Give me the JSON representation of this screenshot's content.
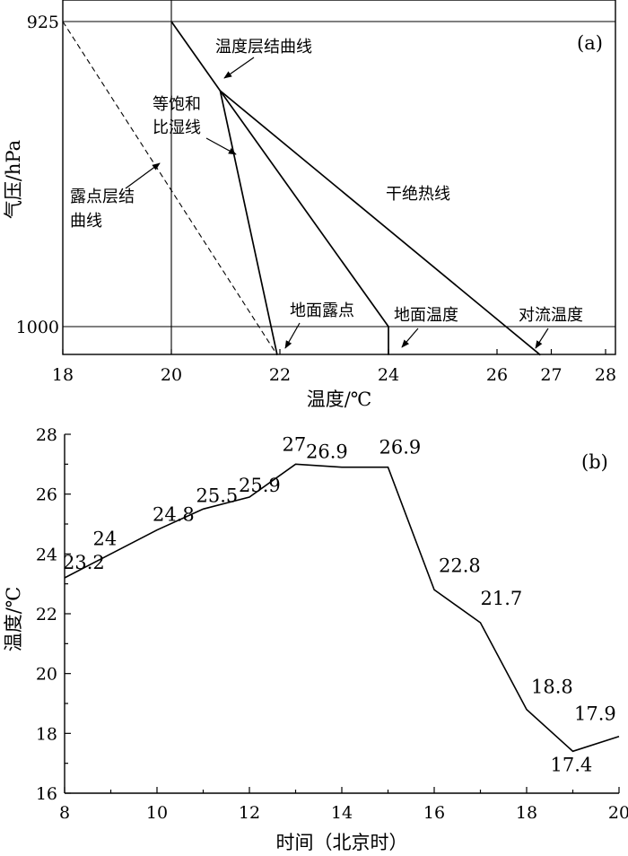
{
  "chart_data": [
    {
      "type": "line",
      "panel_label": "(a)",
      "xlabel": "温度/℃",
      "ylabel": "气压/hPa",
      "xlim": [
        18,
        28.3
      ],
      "x_ticks": [
        18,
        20,
        22,
        24,
        26,
        27,
        28
      ],
      "y_ticks": [
        {
          "value": 925,
          "label": "925"
        },
        {
          "value": 1000,
          "label": "1000"
        }
      ],
      "grid_lines": {
        "x": [
          20
        ],
        "y": [
          925,
          1000
        ]
      },
      "series": [
        {
          "label": "温度层结曲线",
          "style": "solid",
          "points": [
            [
              20,
              925
            ],
            [
              20.9,
              942
            ]
          ]
        },
        {
          "label": "等饱和比湿线",
          "style": "solid",
          "points": [
            [
              20.9,
              942
            ],
            [
              21.95,
              1007
            ]
          ]
        },
        {
          "label": "露点层结曲线",
          "style": "dashed",
          "points": [
            [
              18,
              925
            ],
            [
              21.95,
              1007
            ]
          ]
        },
        {
          "label": "干绝热线",
          "style": "solid",
          "points": [
            [
              20.9,
              942
            ],
            [
              26.8,
              1007
            ]
          ]
        },
        {
          "style": "solid",
          "points": [
            [
              20.9,
              942
            ],
            [
              24,
              1000
            ]
          ]
        },
        {
          "style": "solid",
          "points": [
            [
              24,
              1000
            ],
            [
              24,
              1007
            ]
          ]
        }
      ],
      "annotations": [
        {
          "text": "温度层结曲线"
        },
        {
          "text": "等饱和"
        },
        {
          "text": "比湿线"
        },
        {
          "text": "露点层结"
        },
        {
          "text": "曲线"
        },
        {
          "text": "干绝热线"
        },
        {
          "text": "地面露点"
        },
        {
          "text": "地面温度"
        },
        {
          "text": "对流温度"
        }
      ]
    },
    {
      "type": "line",
      "panel_label": "(b)",
      "xlabel": "时间（北京时）",
      "ylabel": "温度/℃",
      "xlim": [
        8,
        20
      ],
      "ylim": [
        16,
        28
      ],
      "x_ticks": [
        8,
        10,
        12,
        14,
        16,
        18,
        20
      ],
      "y_ticks": [
        16,
        18,
        20,
        22,
        24,
        26,
        28
      ],
      "x": [
        8,
        9,
        10,
        11,
        12,
        13,
        14,
        15,
        16,
        17,
        18,
        19,
        20
      ],
      "values": [
        23.2,
        24,
        24.8,
        25.5,
        25.9,
        27,
        26.9,
        26.9,
        22.8,
        21.7,
        18.8,
        17.4,
        17.9
      ],
      "data_labels": [
        "23.2",
        "24",
        "24.8",
        "25.5",
        "25.9",
        "27",
        "26.9",
        "26.9",
        "22.8",
        "21.7",
        "18.8",
        "17.4",
        "17.9"
      ]
    }
  ]
}
